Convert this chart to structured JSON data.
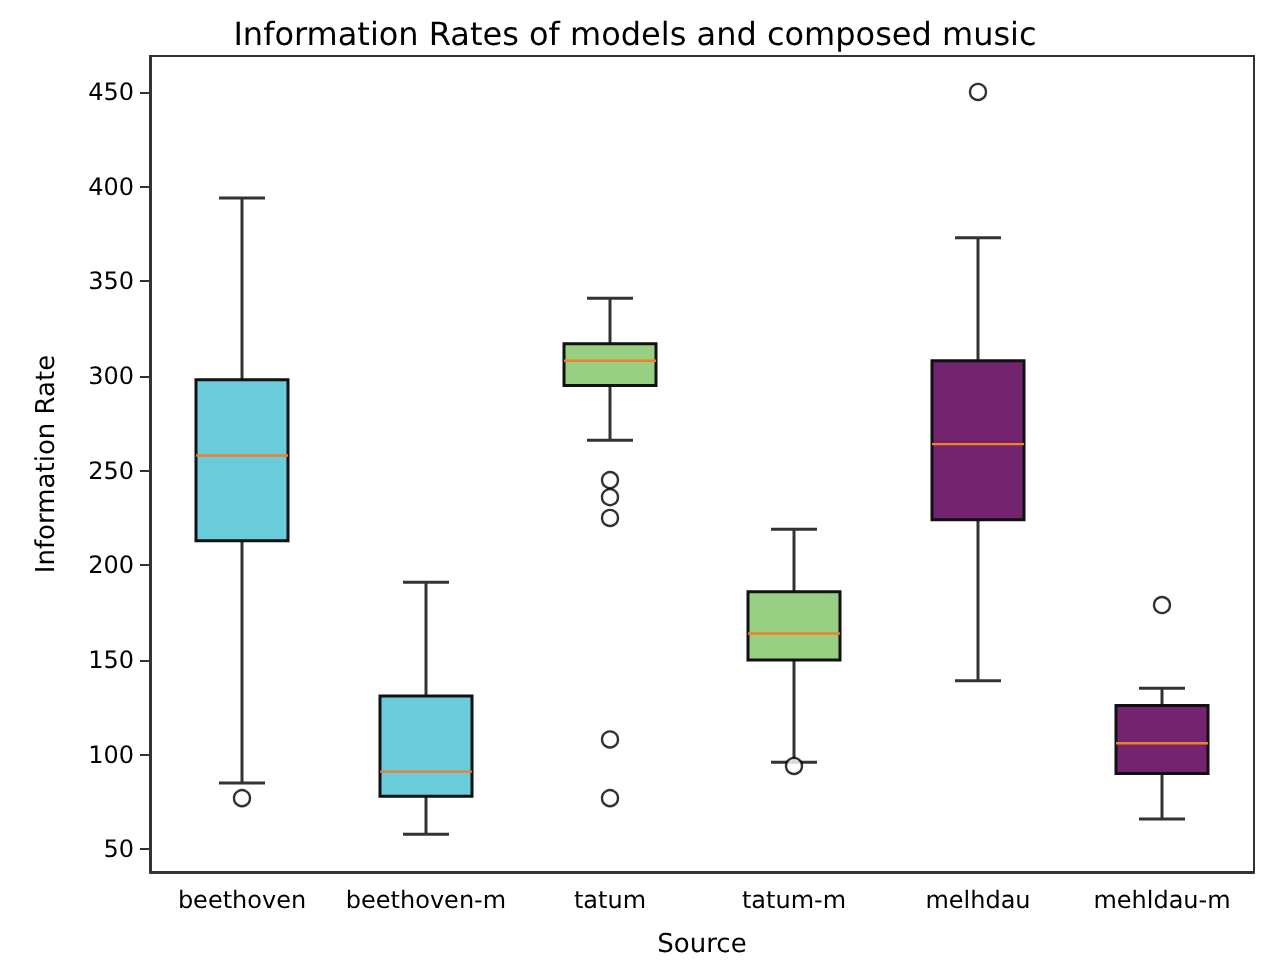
{
  "chart_data": {
    "type": "box",
    "title": "Information Rates of models and composed music",
    "xlabel": "Source",
    "ylabel": "Information Rate",
    "categories": [
      "beethoven",
      "beethoven-m",
      "tatum",
      "tatum-m",
      "melhdau",
      "mehldau-m"
    ],
    "colors": [
      "#6acbdb",
      "#6acbdb",
      "#98d083",
      "#98d083",
      "#74246f",
      "#74246f"
    ],
    "boxes": [
      {
        "low": 85,
        "q1": 213,
        "median": 258,
        "q3": 298,
        "high": 394,
        "outliers": [
          77
        ]
      },
      {
        "low": 58,
        "q1": 78,
        "median": 91,
        "q3": 131,
        "high": 191
      },
      {
        "low": 266,
        "q1": 295,
        "median": 308,
        "q3": 317,
        "high": 341,
        "outliers": [
          245,
          236,
          225,
          108,
          77
        ]
      },
      {
        "low": 96,
        "q1": 150,
        "median": 164,
        "q3": 186,
        "high": 219,
        "outliers": [
          94
        ]
      },
      {
        "low": 139,
        "q1": 224,
        "median": 264,
        "q3": 308,
        "high": 373,
        "outliers": [
          450
        ]
      },
      {
        "low": 66,
        "q1": 90,
        "median": 106,
        "q3": 126,
        "high": 135,
        "outliers": [
          179
        ]
      }
    ],
    "ylim": [
      38,
      469
    ],
    "yticks": [
      50,
      100,
      150,
      200,
      250,
      300,
      350,
      400,
      450
    ],
    "grid": false,
    "legend": false
  }
}
